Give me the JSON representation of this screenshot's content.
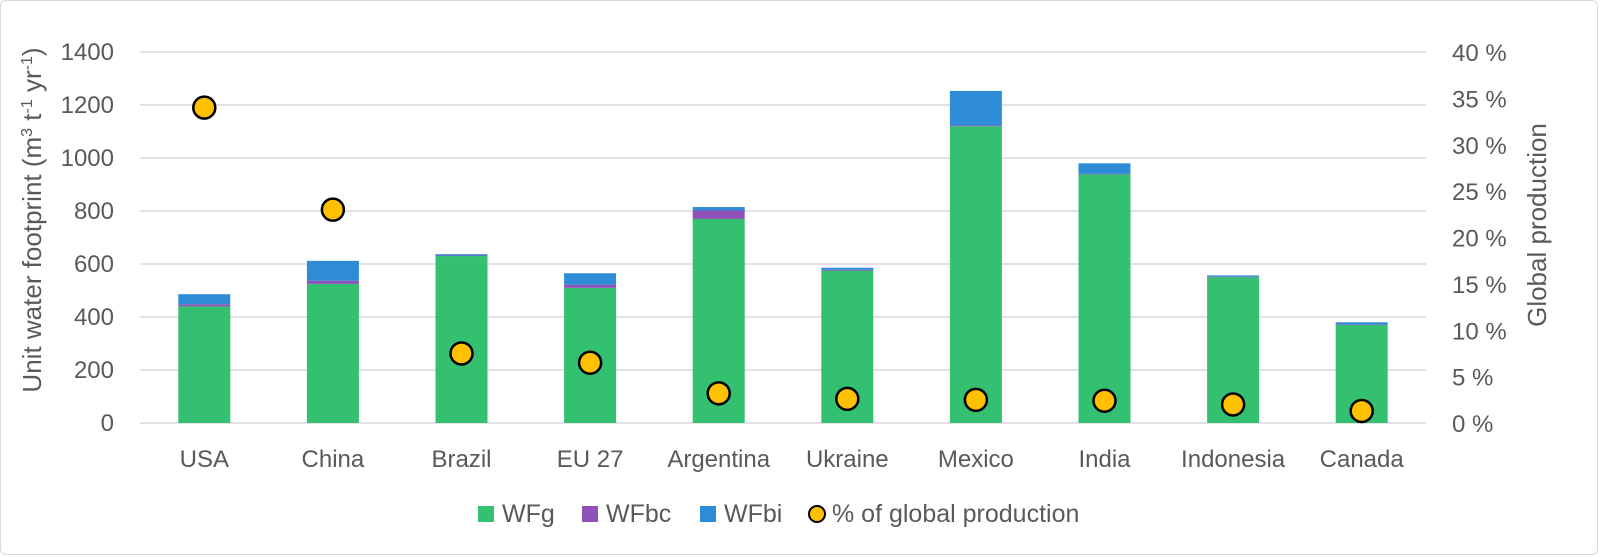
{
  "chart_data": {
    "type": "bar",
    "stacked": true,
    "categories": [
      "USA",
      "China",
      "Brazil",
      "EU 27",
      "Argentina",
      "Ukraine",
      "Mexico",
      "India",
      "Indonesia",
      "Canada"
    ],
    "series": [
      {
        "name": "WFg",
        "color": "#33c071",
        "values": [
          440,
          525,
          630,
          510,
          770,
          575,
          1120,
          938,
          550,
          370
        ]
      },
      {
        "name": "WFbc",
        "color": "#8e52b8",
        "values": [
          8,
          12,
          2,
          12,
          32,
          3,
          3,
          2,
          2,
          2
        ]
      },
      {
        "name": "WFbi",
        "color": "#2e8bd6",
        "values": [
          38,
          75,
          5,
          43,
          13,
          8,
          130,
          40,
          5,
          8
        ]
      }
    ],
    "secondary_series": {
      "name": "% of global production",
      "type": "scatter",
      "marker_fill": "#ffc000",
      "marker_stroke": "#000000",
      "values": [
        0.34,
        0.23,
        0.075,
        0.065,
        0.032,
        0.026,
        0.025,
        0.024,
        0.02,
        0.013
      ]
    },
    "ylim": [
      0,
      1400
    ],
    "yticks": [
      "0",
      "200",
      "400",
      "600",
      "800",
      "1000",
      "1200",
      "1400"
    ],
    "y2lim": [
      0,
      0.4
    ],
    "y2ticks": [
      "0 %",
      "5 %",
      "10 %",
      "15 %",
      "20 %",
      "25 %",
      "30 %",
      "35 %",
      "40 %"
    ],
    "ylabel": "Unit water footprint (m",
    "ylabel_sup1": "3",
    "ylabel_mid": " t",
    "ylabel_sup2": "-1",
    "ylabel_mid2": " yr",
    "ylabel_sup3": "-1",
    "ylabel_end": ")",
    "y2label": "Global production",
    "grid": true,
    "legend_position": "bottom"
  }
}
